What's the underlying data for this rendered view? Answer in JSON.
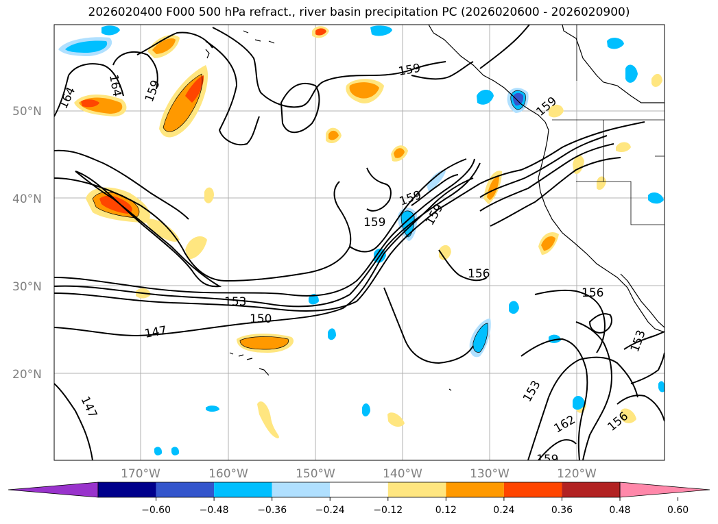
{
  "title": "2026020400 F000 500 hPa refract., river basin precipitation PC (2026020600 - 2026020900)",
  "lat_labels": [
    "50°N",
    "40°N",
    "30°N",
    "20°N"
  ],
  "lon_labels": [
    "170°W",
    "160°W",
    "150°W",
    "140°W",
    "130°W",
    "120°W"
  ],
  "contour_labels": [
    {
      "text": "164"
    },
    {
      "text": "164"
    },
    {
      "text": "159"
    },
    {
      "text": "159"
    },
    {
      "text": "159"
    },
    {
      "text": "159"
    },
    {
      "text": "159"
    },
    {
      "text": "159"
    },
    {
      "text": "156"
    },
    {
      "text": "156"
    },
    {
      "text": "153"
    },
    {
      "text": "150"
    },
    {
      "text": "147"
    },
    {
      "text": "147"
    },
    {
      "text": "153"
    },
    {
      "text": "153"
    },
    {
      "text": "162"
    },
    {
      "text": "156"
    },
    {
      "text": "159"
    }
  ],
  "colorbar": {
    "ticks": [
      "−0.60",
      "−0.48",
      "−0.36",
      "−0.24",
      "−0.12",
      "0.12",
      "0.24",
      "0.36",
      "0.48",
      "0.60"
    ],
    "colors": [
      "#9933cc",
      "#00008b",
      "#3355cc",
      "#00bfff",
      "#b0e0ff",
      "#ffffff",
      "#ffe680",
      "#ff9900",
      "#ff4500",
      "#b22222",
      "#ff88aa"
    ]
  },
  "colors": {
    "land": "#000000",
    "grid": "#b0b0b0",
    "contour": "#000000"
  }
}
